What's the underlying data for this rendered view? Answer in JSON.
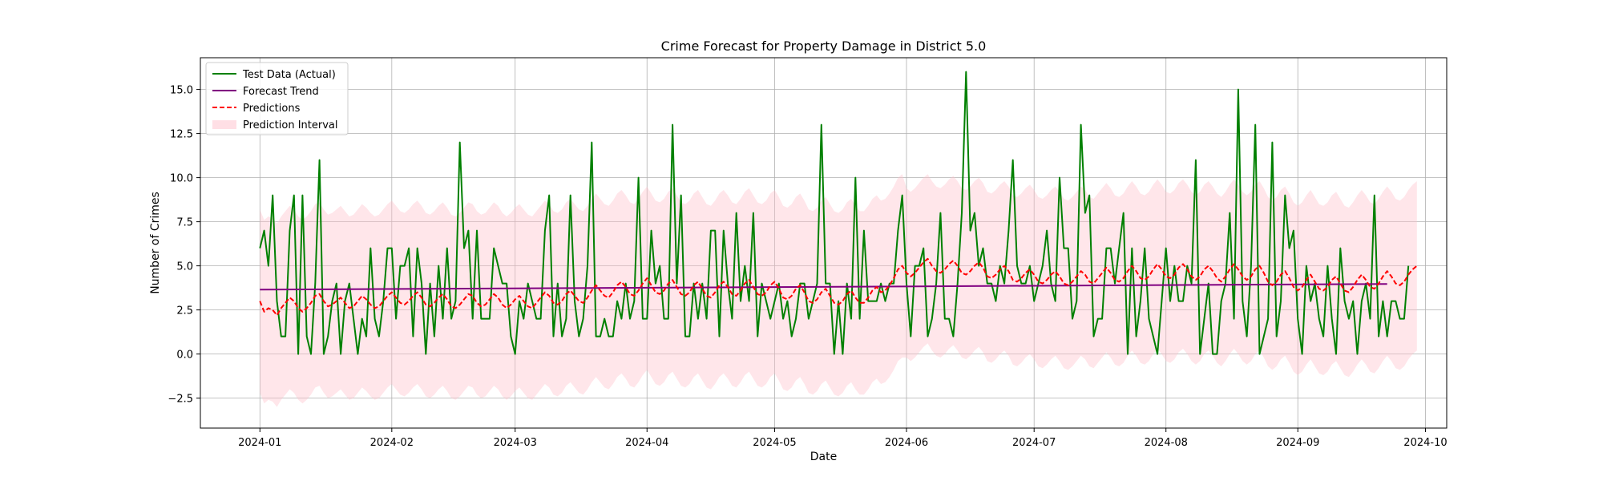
{
  "chart_data": {
    "type": "line",
    "title": "Crime Forecast for Property Damage in District 5.0",
    "xlabel": "Date",
    "ylabel": "Number of Crimes",
    "xlim": [
      "2023-12-18",
      "2024-10-06"
    ],
    "ylim": [
      -4.2,
      16.8
    ],
    "x_ticks": [
      "2024-01-01",
      "2024-02-01",
      "2024-03-01",
      "2024-04-01",
      "2024-05-01",
      "2024-06-01",
      "2024-07-01",
      "2024-08-01",
      "2024-09-01",
      "2024-10-01"
    ],
    "y_ticks": [
      -2.5,
      0.0,
      2.5,
      5.0,
      7.5,
      10.0,
      12.5,
      15.0
    ],
    "y_tick_labels": [
      "−2.5",
      "0.0",
      "2.5",
      "5.0",
      "7.5",
      "10.0",
      "12.5",
      "15.0"
    ],
    "grid": true,
    "legend_position": "top-left",
    "legend": [
      {
        "label": "Test Data (Actual)",
        "kind": "line",
        "color": "#008000"
      },
      {
        "label": "Forecast Trend",
        "kind": "line",
        "color": "#800080"
      },
      {
        "label": "Predictions",
        "kind": "dashed",
        "color": "#ff0000"
      },
      {
        "label": "Prediction Interval",
        "kind": "fill",
        "color": "#ffc0cb"
      }
    ],
    "series": [
      {
        "name": "Test Data (Actual)",
        "color": "#008000",
        "start_date": "2024-01-01",
        "values": [
          6,
          7,
          5,
          9,
          3,
          1,
          1,
          7,
          9,
          0,
          9,
          1,
          0,
          4,
          11,
          0,
          1,
          3,
          4,
          0,
          3,
          4,
          2,
          0,
          2,
          1,
          6,
          2,
          1,
          3,
          6,
          6,
          2,
          5,
          5,
          6,
          1,
          6,
          4,
          0,
          4,
          1,
          5,
          2,
          6,
          2,
          3,
          12,
          6,
          7,
          2,
          7,
          2,
          2,
          2,
          6,
          5,
          4,
          4,
          1,
          0,
          3,
          2,
          4,
          3,
          2,
          2,
          7,
          9,
          1,
          4,
          1,
          2,
          9,
          3,
          1,
          2,
          5,
          12,
          1,
          1,
          2,
          1,
          1,
          3,
          2,
          4,
          2,
          3,
          10,
          2,
          2,
          7,
          4,
          5,
          2,
          2,
          13,
          4,
          9,
          1,
          1,
          4,
          2,
          4,
          2,
          7,
          7,
          1,
          7,
          4,
          2,
          8,
          3,
          5,
          3,
          8,
          1,
          4,
          3,
          2,
          3,
          4,
          2,
          3,
          1,
          2,
          4,
          4,
          2,
          3,
          4,
          13,
          4,
          4,
          0,
          3,
          0,
          4,
          2,
          10,
          2,
          7,
          3,
          3,
          3,
          4,
          3,
          4,
          4,
          7,
          9,
          4,
          1,
          5,
          5,
          6,
          1,
          2,
          4,
          8,
          2,
          2,
          1,
          4,
          8,
          16,
          7,
          8,
          5,
          6,
          4,
          4,
          3,
          5,
          4,
          7,
          11,
          5,
          4,
          4,
          5,
          3,
          4,
          5,
          7,
          4,
          3,
          10,
          6,
          6,
          2,
          3,
          13,
          8,
          9,
          1,
          2,
          2,
          6,
          6,
          4,
          6,
          8,
          0,
          6,
          1,
          3,
          6,
          2,
          1,
          0,
          3,
          6,
          3,
          5,
          3,
          3,
          5,
          4,
          11,
          0,
          2,
          4,
          0,
          0,
          3,
          4,
          8,
          2,
          15,
          3,
          1,
          5,
          13,
          0,
          1,
          2,
          12,
          1,
          3,
          9,
          6,
          7,
          2,
          0,
          5,
          3,
          4,
          2,
          1,
          5,
          2,
          0,
          6,
          3,
          2,
          3,
          0,
          3,
          4,
          2,
          9,
          1,
          3,
          1,
          3,
          3,
          2,
          2,
          5
        ]
      },
      {
        "name": "Forecast Trend",
        "color": "#800080",
        "start_date": "2024-01-01",
        "end_date": "2024-09-22",
        "values": [
          3.65,
          3.97
        ]
      },
      {
        "name": "Predictions",
        "color": "#ff0000",
        "start_date": "2024-01-01",
        "values": [
          3.0,
          2.4,
          2.6,
          2.5,
          2.2,
          2.6,
          2.9,
          3.2,
          3.0,
          2.6,
          2.4,
          2.6,
          2.9,
          3.3,
          3.4,
          3.0,
          2.7,
          2.8,
          3.0,
          3.2,
          2.9,
          2.6,
          2.7,
          3.0,
          3.3,
          3.1,
          2.8,
          2.6,
          2.7,
          3.0,
          3.3,
          3.5,
          3.2,
          2.9,
          2.8,
          3.0,
          3.3,
          3.5,
          3.2,
          2.8,
          2.7,
          2.9,
          3.2,
          3.4,
          3.1,
          2.7,
          2.6,
          2.8,
          3.1,
          3.4,
          3.3,
          2.9,
          2.7,
          2.8,
          3.1,
          3.4,
          3.2,
          2.8,
          2.6,
          2.8,
          3.1,
          3.3,
          3.0,
          2.7,
          2.6,
          2.9,
          3.2,
          3.5,
          3.3,
          2.9,
          2.8,
          3.0,
          3.4,
          3.6,
          3.3,
          3.0,
          2.9,
          3.2,
          3.6,
          3.9,
          3.6,
          3.3,
          3.2,
          3.5,
          3.9,
          4.1,
          3.8,
          3.4,
          3.3,
          3.6,
          4.0,
          4.3,
          3.9,
          3.5,
          3.4,
          3.6,
          4.0,
          4.2,
          3.8,
          3.4,
          3.3,
          3.5,
          3.9,
          4.1,
          3.7,
          3.3,
          3.2,
          3.5,
          3.9,
          4.1,
          3.8,
          3.4,
          3.3,
          3.6,
          4.0,
          4.2,
          3.8,
          3.4,
          3.3,
          3.5,
          3.9,
          4.1,
          3.7,
          3.2,
          3.1,
          3.3,
          3.7,
          3.9,
          3.5,
          3.0,
          2.9,
          3.1,
          3.5,
          3.7,
          3.3,
          2.9,
          2.8,
          3.0,
          3.4,
          3.6,
          3.2,
          2.9,
          2.9,
          3.2,
          3.6,
          3.8,
          3.5,
          3.6,
          3.9,
          4.3,
          4.8,
          5.0,
          4.6,
          4.4,
          4.6,
          4.9,
          5.2,
          5.4,
          5.0,
          4.7,
          4.6,
          4.8,
          5.1,
          5.3,
          5.0,
          4.6,
          4.5,
          4.7,
          5.0,
          5.2,
          4.9,
          4.4,
          4.3,
          4.5,
          4.8,
          5.0,
          4.7,
          4.2,
          4.1,
          4.3,
          4.6,
          4.8,
          4.5,
          4.1,
          4.0,
          4.2,
          4.5,
          4.7,
          4.4,
          4.0,
          3.9,
          4.1,
          4.4,
          4.7,
          4.5,
          4.1,
          4.0,
          4.3,
          4.6,
          4.9,
          4.6,
          4.2,
          4.1,
          4.3,
          4.7,
          5.0,
          4.7,
          4.3,
          4.2,
          4.4,
          4.8,
          5.1,
          4.8,
          4.4,
          4.3,
          4.5,
          4.9,
          5.1,
          4.8,
          4.4,
          4.2,
          4.4,
          4.8,
          5.0,
          4.7,
          4.3,
          4.1,
          4.4,
          4.8,
          5.1,
          4.8,
          4.4,
          4.2,
          4.4,
          4.8,
          5.0,
          4.6,
          4.1,
          3.9,
          4.1,
          4.5,
          4.7,
          4.3,
          3.8,
          3.6,
          3.8,
          4.2,
          4.5,
          4.1,
          3.7,
          3.6,
          3.8,
          4.2,
          4.4,
          4.0,
          3.6,
          3.5,
          3.8,
          4.2,
          4.5,
          4.2,
          3.8,
          3.7,
          4.0,
          4.4,
          4.7,
          4.4,
          4.0,
          3.9,
          4.1,
          4.5,
          4.8,
          5.0
        ]
      }
    ],
    "interval": {
      "name": "Prediction Interval",
      "color": "#ffc0cb",
      "half_width_before_june": 5.2,
      "half_width_from_june": 4.8,
      "split_date": "2024-06-01"
    }
  }
}
